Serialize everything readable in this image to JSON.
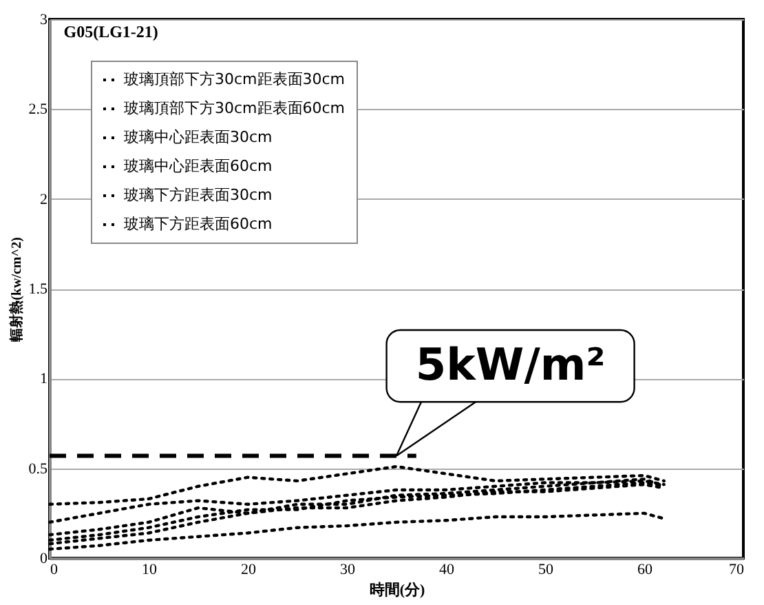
{
  "chart_data": {
    "type": "line",
    "title": "G05(LG1-21)",
    "xlabel": "時間(分)",
    "ylabel": "輻射熱(kw/cm^2)",
    "x": [
      0,
      5,
      10,
      15,
      20,
      25,
      30,
      35,
      40,
      45,
      50,
      55,
      60,
      62
    ],
    "series": [
      {
        "name": "玻璃頂部下方30cm距表面30cm",
        "color": "#000000",
        "values": [
          0.3,
          0.31,
          0.33,
          0.4,
          0.45,
          0.43,
          0.47,
          0.51,
          0.47,
          0.43,
          0.44,
          0.45,
          0.46,
          0.43
        ]
      },
      {
        "name": "玻璃頂部下方30cm距表面60cm",
        "color": "#000000",
        "values": [
          0.2,
          0.25,
          0.3,
          0.32,
          0.3,
          0.32,
          0.35,
          0.38,
          0.38,
          0.4,
          0.42,
          0.42,
          0.44,
          0.4
        ]
      },
      {
        "name": "玻璃中心距表面30cm",
        "color": "#000000",
        "values": [
          0.13,
          0.16,
          0.2,
          0.28,
          0.25,
          0.3,
          0.3,
          0.35,
          0.36,
          0.38,
          0.4,
          0.42,
          0.43,
          0.41
        ]
      },
      {
        "name": "玻璃中心距表面60cm",
        "color": "#000000",
        "values": [
          0.1,
          0.13,
          0.17,
          0.23,
          0.27,
          0.27,
          0.32,
          0.34,
          0.35,
          0.36,
          0.38,
          0.4,
          0.42,
          0.4
        ]
      },
      {
        "name": "玻璃下方距表面30cm",
        "color": "#000000",
        "values": [
          0.08,
          0.11,
          0.14,
          0.2,
          0.25,
          0.28,
          0.28,
          0.32,
          0.34,
          0.37,
          0.37,
          0.39,
          0.41,
          0.39
        ]
      },
      {
        "name": "玻璃下方距表面60cm",
        "color": "#000000",
        "values": [
          0.05,
          0.07,
          0.1,
          0.12,
          0.14,
          0.17,
          0.18,
          0.2,
          0.21,
          0.23,
          0.23,
          0.24,
          0.25,
          0.22
        ]
      },
      {
        "type": "line",
        "color": "#000000",
        "line_style": "dashed",
        "x": [
          0,
          37
        ],
        "values": [
          0.57,
          0.57
        ]
      }
    ],
    "annotations": [
      {
        "text": "5kW/m²",
        "x": 35,
        "y": 0.57
      }
    ],
    "xlim": [
      0,
      70
    ],
    "xticks": [
      0,
      10,
      20,
      30,
      40,
      50,
      60,
      70
    ],
    "ylim": [
      0,
      3
    ],
    "yticks": [
      0,
      0.5,
      1,
      1.5,
      2,
      2.5,
      3
    ],
    "grid": "y",
    "legend": "top left",
    "line_style": "dotted",
    "marker": "none"
  }
}
